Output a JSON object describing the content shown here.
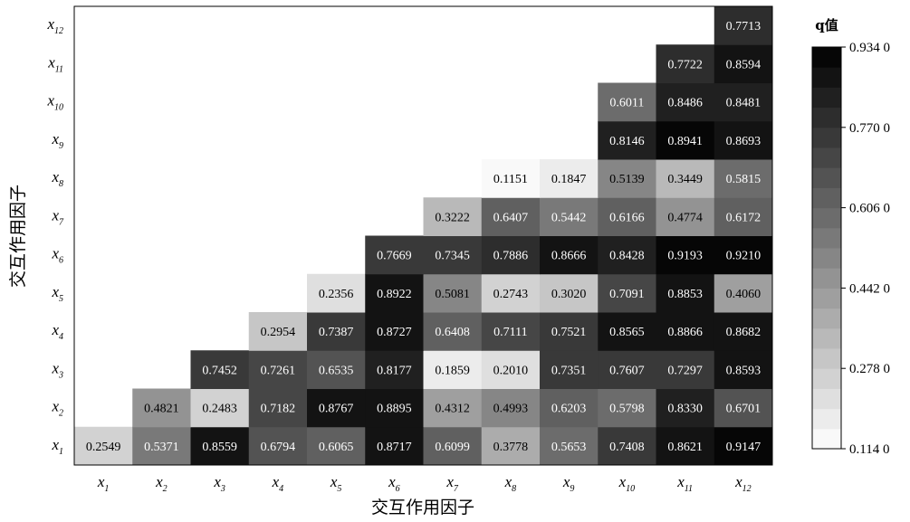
{
  "chart_data": {
    "type": "heatmap",
    "xlabel": "交互作用因子",
    "ylabel": "交互作用因子",
    "x_categories": [
      {
        "base": "x",
        "sub": "1"
      },
      {
        "base": "x",
        "sub": "2"
      },
      {
        "base": "x",
        "sub": "3"
      },
      {
        "base": "x",
        "sub": "4"
      },
      {
        "base": "x",
        "sub": "5"
      },
      {
        "base": "x",
        "sub": "6"
      },
      {
        "base": "x",
        "sub": "7"
      },
      {
        "base": "x",
        "sub": "8"
      },
      {
        "base": "x",
        "sub": "9"
      },
      {
        "base": "x",
        "sub": "10"
      },
      {
        "base": "x",
        "sub": "11"
      },
      {
        "base": "x",
        "sub": "12"
      }
    ],
    "y_categories": [
      {
        "base": "x",
        "sub": "1"
      },
      {
        "base": "x",
        "sub": "2"
      },
      {
        "base": "x",
        "sub": "3"
      },
      {
        "base": "x",
        "sub": "4"
      },
      {
        "base": "x",
        "sub": "5"
      },
      {
        "base": "x",
        "sub": "6"
      },
      {
        "base": "x",
        "sub": "7"
      },
      {
        "base": "x",
        "sub": "8"
      },
      {
        "base": "x",
        "sub": "9"
      },
      {
        "base": "x",
        "sub": "10"
      },
      {
        "base": "x",
        "sub": "11"
      },
      {
        "base": "x",
        "sub": "12"
      }
    ],
    "values": [
      [
        "0.2549",
        "0.5371",
        "0.8559",
        "0.6794",
        "0.6065",
        "0.8717",
        "0.6099",
        "0.3778",
        "0.5653",
        "0.7408",
        "0.8621",
        "0.9147"
      ],
      [
        null,
        "0.4821",
        "0.2483",
        "0.7182",
        "0.8767",
        "0.8895",
        "0.4312",
        "0.4993",
        "0.6203",
        "0.5798",
        "0.8330",
        "0.6701"
      ],
      [
        null,
        null,
        "0.7452",
        "0.7261",
        "0.6535",
        "0.8177",
        "0.1859",
        "0.2010",
        "0.7351",
        "0.7607",
        "0.7297",
        "0.8593"
      ],
      [
        null,
        null,
        null,
        "0.2954",
        "0.7387",
        "0.8727",
        "0.6408",
        "0.7111",
        "0.7521",
        "0.8565",
        "0.8866",
        "0.8682"
      ],
      [
        null,
        null,
        null,
        null,
        "0.2356",
        "0.8922",
        "0.5081",
        "0.2743",
        "0.3020",
        "0.7091",
        "0.8853",
        "0.4060"
      ],
      [
        null,
        null,
        null,
        null,
        null,
        "0.7669",
        "0.7345",
        "0.7886",
        "0.8666",
        "0.8428",
        "0.9193",
        "0.9210"
      ],
      [
        null,
        null,
        null,
        null,
        null,
        null,
        "0.3222",
        "0.6407",
        "0.5442",
        "0.6166",
        "0.4774",
        "0.6172"
      ],
      [
        null,
        null,
        null,
        null,
        null,
        null,
        null,
        "0.1151",
        "0.1847",
        "0.5139",
        "0.3449",
        "0.5815"
      ],
      [
        null,
        null,
        null,
        null,
        null,
        null,
        null,
        null,
        null,
        "0.8146",
        "0.8941",
        "0.8693"
      ],
      [
        null,
        null,
        null,
        null,
        null,
        null,
        null,
        null,
        null,
        "0.6011",
        "0.8486",
        "0.8481"
      ],
      [
        null,
        null,
        null,
        null,
        null,
        null,
        null,
        null,
        null,
        null,
        "0.7722",
        "0.8594"
      ],
      [
        null,
        null,
        null,
        null,
        null,
        null,
        null,
        null,
        null,
        null,
        null,
        "0.7713"
      ]
    ],
    "colorbar": {
      "title": "q值",
      "min": 0.114,
      "max": 0.934,
      "steps": 20,
      "ticks": [
        "0.114 0",
        "0.278 0",
        "0.442 0",
        "0.606 0",
        "0.770 0",
        "0.934 0"
      ],
      "low_color": "#ffffff",
      "high_color": "#000000"
    }
  }
}
